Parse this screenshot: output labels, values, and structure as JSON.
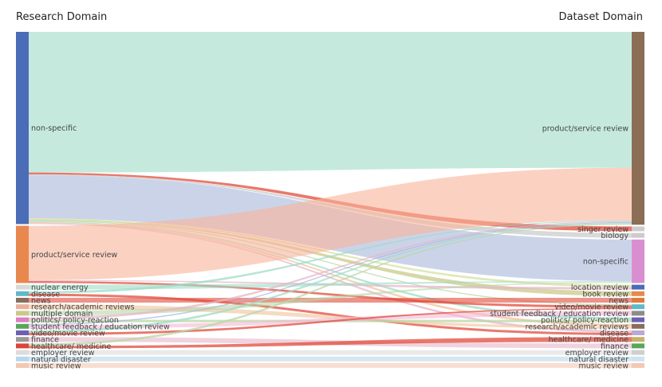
{
  "header": {
    "left": "Research Domain",
    "right": "Dataset Domain"
  },
  "chart_data": {
    "type": "sankey",
    "title": "",
    "left_nodes": [
      {
        "label": "non-specific",
        "color": "#4b6cb7"
      },
      {
        "label": "product/service review",
        "color": "#e8884f"
      },
      {
        "label": "nuclear energy",
        "color": "#d9d9d9"
      },
      {
        "label": "disease",
        "color": "#62b8c9"
      },
      {
        "label": "news",
        "color": "#8a6d5a"
      },
      {
        "label": "research/academic reviews",
        "color": "#e9b0a0"
      },
      {
        "label": "multiple domain",
        "color": "#c9c98a"
      },
      {
        "label": "politics/ policy-reaction",
        "color": "#e07ec4"
      },
      {
        "label": "student feedback / education review",
        "color": "#58a65a"
      },
      {
        "label": "video/movie review",
        "color": "#6d5fb3"
      },
      {
        "label": "finance",
        "color": "#999999"
      },
      {
        "label": "healthcare/ medicine",
        "color": "#d9453d"
      },
      {
        "label": "employer review",
        "color": "#dcdcdc"
      },
      {
        "label": "natural disaster",
        "color": "#b9d7ea"
      },
      {
        "label": "music review",
        "color": "#f3c8b3"
      }
    ],
    "right_nodes": [
      {
        "label": "product/service review",
        "color": "#8b6e55"
      },
      {
        "label": "singer review",
        "color": "#cccccc"
      },
      {
        "label": "biology",
        "color": "#cccccc"
      },
      {
        "label": "non-specific",
        "color": "#d98fcf"
      },
      {
        "label": "location review",
        "color": "#4b6cb7"
      },
      {
        "label": "book review",
        "color": "#e8884f"
      },
      {
        "label": "news",
        "color": "#e07a3a"
      },
      {
        "label": "video/movie review",
        "color": "#62b8c9"
      },
      {
        "label": "student feedback / education review",
        "color": "#8c8c8c"
      },
      {
        "label": "politics/ policy-reaction",
        "color": "#6d5fb3"
      },
      {
        "label": "research/academic reviews",
        "color": "#8a6d5a"
      },
      {
        "label": "disease",
        "color": "#b8a9d6"
      },
      {
        "label": "healthcare/ medicine",
        "color": "#c9b16a"
      },
      {
        "label": "finance",
        "color": "#58a65a"
      },
      {
        "label": "employer review",
        "color": "#cfcfcf"
      },
      {
        "label": "natural disaster",
        "color": "#cfe3f0"
      },
      {
        "label": "music review",
        "color": "#f3c8b3"
      }
    ],
    "links": [
      {
        "source": 0,
        "target": 0,
        "value": 150,
        "color": "#9fdcc6"
      },
      {
        "source": 0,
        "target": 3,
        "value": 46,
        "color": "#a9b6db"
      },
      {
        "source": 0,
        "target": 1,
        "value": 2,
        "color": "#e14b3b"
      },
      {
        "source": 0,
        "target": 7,
        "value": 1,
        "color": "#b8d7a6"
      },
      {
        "source": 0,
        "target": 9,
        "value": 1,
        "color": "#9fdcc6"
      },
      {
        "source": 0,
        "target": 10,
        "value": 1,
        "color": "#f0c29a"
      },
      {
        "source": 0,
        "target": 4,
        "value": 1,
        "color": "#d7e0a0"
      },
      {
        "source": 0,
        "target": 11,
        "value": 1,
        "color": "#e6b5c8"
      },
      {
        "source": 1,
        "target": 0,
        "value": 58,
        "color": "#f8b49a"
      },
      {
        "source": 1,
        "target": 7,
        "value": 2,
        "color": "#e14b3b"
      },
      {
        "source": 1,
        "target": 4,
        "value": 1,
        "color": "#e6b5c8"
      },
      {
        "source": 2,
        "target": 3,
        "value": 1,
        "color": "#9fdcc6"
      },
      {
        "source": 3,
        "target": 11,
        "value": 1,
        "color": "#e14b3b"
      },
      {
        "source": 3,
        "target": 0,
        "value": 1,
        "color": "#9fdcc6"
      },
      {
        "source": 4,
        "target": 6,
        "value": 1,
        "color": "#e14b3b"
      },
      {
        "source": 5,
        "target": 10,
        "value": 1,
        "color": "#f0c29a"
      },
      {
        "source": 6,
        "target": 3,
        "value": 1,
        "color": "#b8d7a6"
      },
      {
        "source": 7,
        "target": 9,
        "value": 1,
        "color": "#b8d7a6"
      },
      {
        "source": 7,
        "target": 0,
        "value": 1,
        "color": "#e6b5c8"
      },
      {
        "source": 8,
        "target": 8,
        "value": 3,
        "color": "#f5b8d6"
      },
      {
        "source": 8,
        "target": 0,
        "value": 1,
        "color": "#a9b6db"
      },
      {
        "source": 9,
        "target": 7,
        "value": 1,
        "color": "#e14b3b"
      },
      {
        "source": 9,
        "target": 0,
        "value": 1,
        "color": "#9fdcc6"
      },
      {
        "source": 10,
        "target": 13,
        "value": 1,
        "color": "#e6b5c8"
      },
      {
        "source": 11,
        "target": 12,
        "value": 1,
        "color": "#e14b3b"
      },
      {
        "source": 11,
        "target": 0,
        "value": 1,
        "color": "#b8d7a6"
      },
      {
        "source": 12,
        "target": 14,
        "value": 1,
        "color": "#dcdcdc"
      },
      {
        "source": 13,
        "target": 15,
        "value": 1,
        "color": "#b9d7ea"
      },
      {
        "source": 14,
        "target": 16,
        "value": 1,
        "color": "#f3c8b3"
      },
      {
        "source": 0,
        "target": 5,
        "value": 1,
        "color": "#c9c98a"
      },
      {
        "source": 0,
        "target": 2,
        "value": 1,
        "color": "#cccccc"
      }
    ]
  }
}
